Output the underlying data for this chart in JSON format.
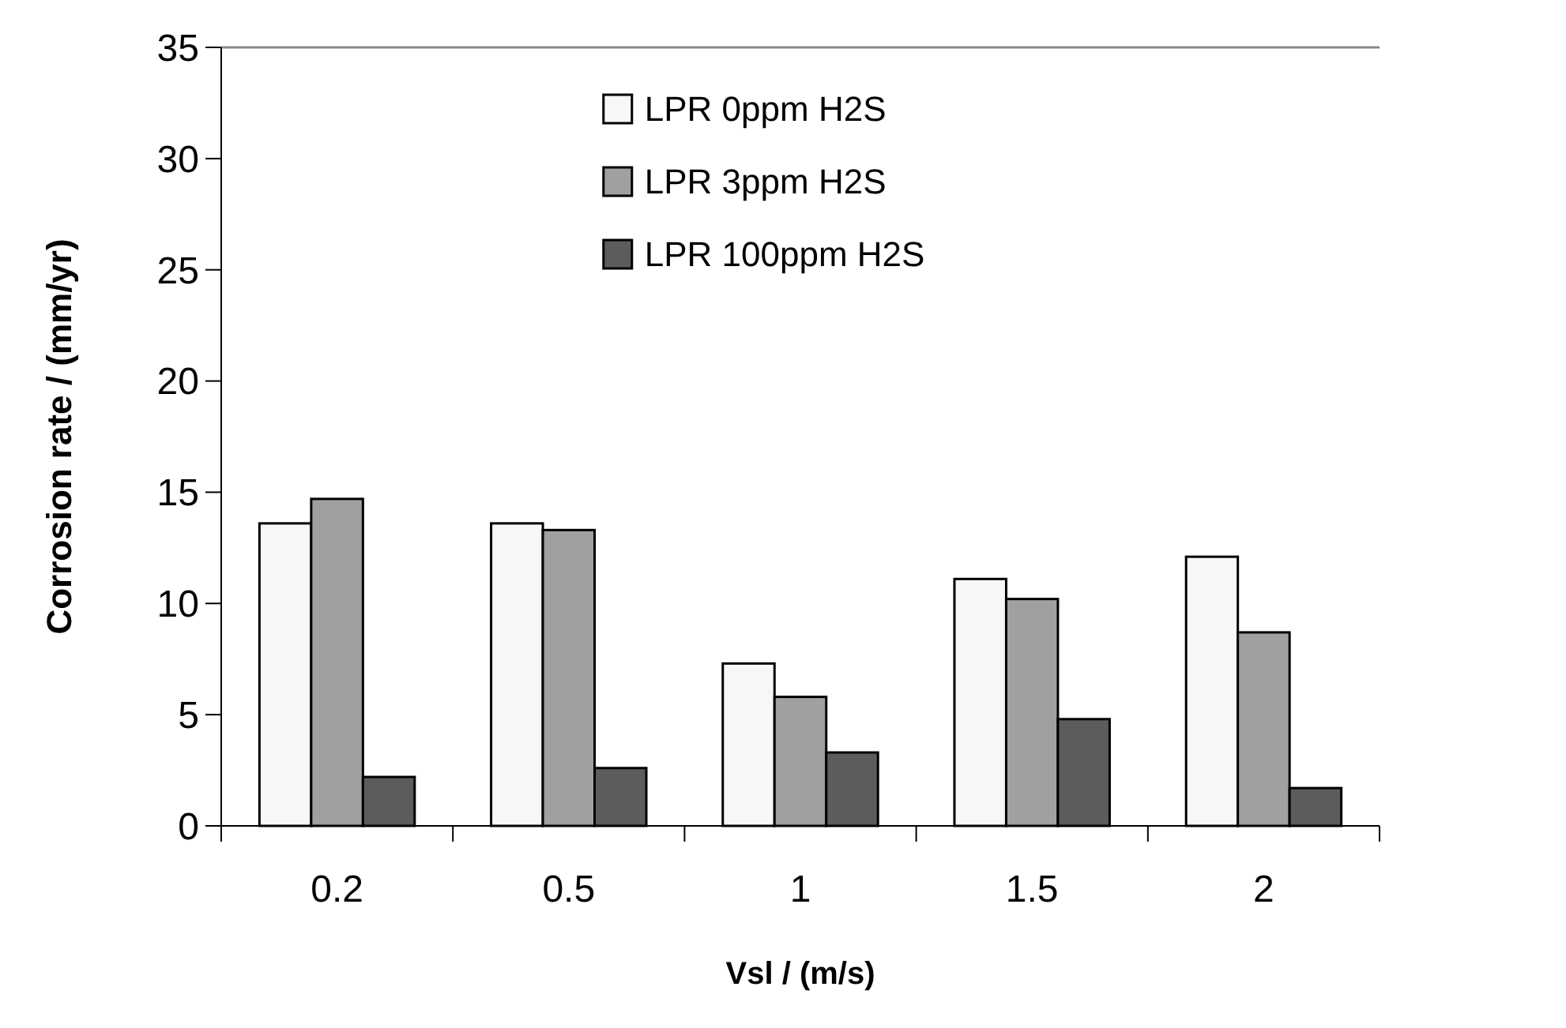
{
  "chart_data": {
    "type": "bar",
    "xlabel": "Vsl / (m/s)",
    "ylabel": "Corrosion rate / (mm/yr)",
    "categories": [
      "0.2",
      "0.5",
      "1",
      "1.5",
      "2"
    ],
    "series": [
      {
        "name": "LPR 0ppm H2S",
        "color": "#f7f7f7",
        "values": [
          13.6,
          13.6,
          7.3,
          11.1,
          12.1
        ]
      },
      {
        "name": "LPR 3ppm H2S",
        "color": "#a0a0a0",
        "values": [
          14.7,
          13.3,
          5.8,
          10.2,
          8.7
        ]
      },
      {
        "name": "LPR 100ppm H2S",
        "color": "#5c5c5c",
        "values": [
          2.2,
          2.6,
          3.3,
          4.8,
          1.7
        ]
      }
    ],
    "ylim": [
      0,
      35
    ],
    "yticks": [
      0,
      5,
      10,
      15,
      20,
      25,
      30,
      35
    ],
    "grid": false,
    "legend": "top"
  }
}
